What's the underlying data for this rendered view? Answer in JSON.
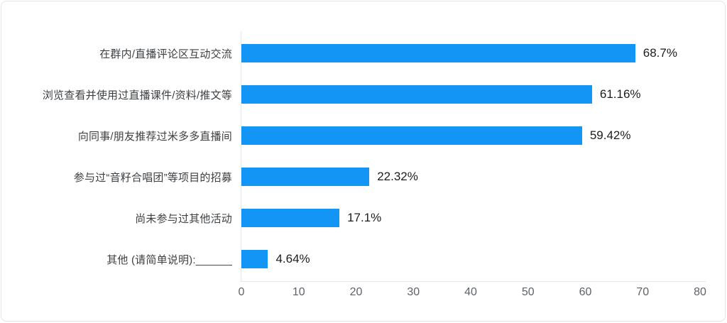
{
  "card": {
    "background": "#ffffff",
    "border_color": "#e3e4e6"
  },
  "chart_data": {
    "type": "bar",
    "orientation": "horizontal",
    "title": "",
    "xlabel": "",
    "ylabel": "",
    "categories": [
      "在群内/直播评论区互动交流",
      "浏览查看并使用过直播课件/资料/推文等",
      "向同事/朋友推荐过米多多直播间",
      "参与过“音籽合唱团”等项目的招募",
      "尚未参与过其他活动",
      "其他 (请简单说明):______"
    ],
    "values": [
      68.7,
      61.16,
      59.42,
      22.32,
      17.1,
      4.64
    ],
    "value_labels": [
      "68.7%",
      "61.16%",
      "59.42%",
      "22.32%",
      "17.1%",
      "4.64%"
    ],
    "xlim": [
      0,
      80
    ],
    "xticks": [
      0,
      10,
      20,
      30,
      40,
      50,
      60,
      70,
      80
    ],
    "bar_color": "#1295f5",
    "axis_line_color": "#e4e7ec",
    "grid": false,
    "legend": false
  }
}
